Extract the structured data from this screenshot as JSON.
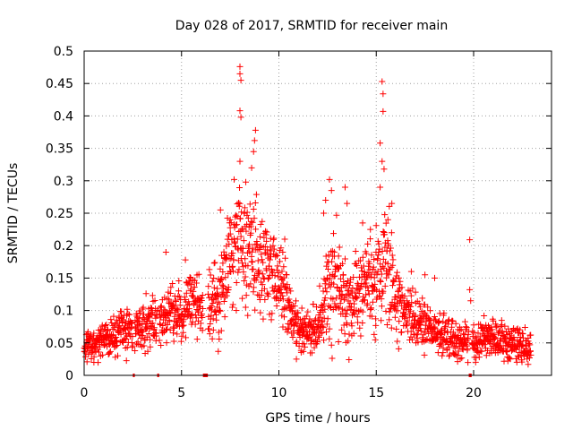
{
  "chart_data": {
    "type": "scatter",
    "title": "Day 028 of 2017, SRMTID for receiver main",
    "xlabel": "GPS time / hours",
    "ylabel": "SRMTID / TECUs",
    "xlim": [
      0,
      24
    ],
    "ylim": [
      0,
      0.5
    ],
    "grid": true,
    "marker": "+",
    "color": "#ff0000",
    "x_ticks": [
      0,
      5,
      10,
      15,
      20
    ],
    "x_tick_labels": [
      "0",
      "5",
      "10",
      "15",
      "20"
    ],
    "y_ticks": [
      0,
      0.05,
      0.1,
      0.15,
      0.2,
      0.25,
      0.3,
      0.35,
      0.4,
      0.45,
      0.5
    ],
    "y_tick_labels": [
      "0",
      "0.05",
      "0.1",
      "0.15",
      "0.2",
      "0.25",
      "0.3",
      "0.35",
      "0.4",
      "0.45",
      "0.5"
    ],
    "profile": {
      "hours": [
        0,
        1,
        2,
        3,
        4,
        4.5,
        5,
        5.5,
        6,
        6.5,
        7,
        7.5,
        8,
        8.5,
        9,
        9.5,
        10,
        10.5,
        11,
        11.5,
        12,
        12.5,
        13,
        13.5,
        14,
        14.5,
        15,
        15.5,
        16,
        16.5,
        17,
        17.5,
        18,
        19,
        20,
        20.5,
        21,
        22,
        23
      ],
      "median": [
        0.045,
        0.055,
        0.07,
        0.075,
        0.085,
        0.105,
        0.09,
        0.12,
        0.1,
        0.115,
        0.13,
        0.18,
        0.21,
        0.2,
        0.17,
        0.16,
        0.14,
        0.1,
        0.075,
        0.065,
        0.07,
        0.12,
        0.15,
        0.11,
        0.12,
        0.13,
        0.15,
        0.17,
        0.12,
        0.1,
        0.085,
        0.08,
        0.07,
        0.055,
        0.05,
        0.06,
        0.055,
        0.05,
        0.045
      ],
      "spread": [
        0.015,
        0.02,
        0.025,
        0.025,
        0.025,
        0.035,
        0.025,
        0.03,
        0.03,
        0.04,
        0.05,
        0.06,
        0.07,
        0.07,
        0.06,
        0.05,
        0.045,
        0.035,
        0.025,
        0.025,
        0.03,
        0.06,
        0.06,
        0.05,
        0.05,
        0.05,
        0.06,
        0.06,
        0.05,
        0.035,
        0.03,
        0.025,
        0.02,
        0.02,
        0.02,
        0.02,
        0.02,
        0.02,
        0.015
      ]
    },
    "points": [
      {
        "x": 8.0,
        "y": 0.476
      },
      {
        "x": 8.0,
        "y": 0.465
      },
      {
        "x": 8.05,
        "y": 0.455
      },
      {
        "x": 8.0,
        "y": 0.408
      },
      {
        "x": 8.05,
        "y": 0.398
      },
      {
        "x": 8.8,
        "y": 0.378
      },
      {
        "x": 8.75,
        "y": 0.362
      },
      {
        "x": 8.7,
        "y": 0.345
      },
      {
        "x": 8.0,
        "y": 0.33
      },
      {
        "x": 8.6,
        "y": 0.32
      },
      {
        "x": 7.7,
        "y": 0.302
      },
      {
        "x": 8.3,
        "y": 0.298
      },
      {
        "x": 15.3,
        "y": 0.453
      },
      {
        "x": 15.35,
        "y": 0.434
      },
      {
        "x": 15.35,
        "y": 0.407
      },
      {
        "x": 15.2,
        "y": 0.358
      },
      {
        "x": 15.3,
        "y": 0.33
      },
      {
        "x": 15.4,
        "y": 0.318
      },
      {
        "x": 15.2,
        "y": 0.29
      },
      {
        "x": 15.8,
        "y": 0.265
      },
      {
        "x": 15.6,
        "y": 0.24
      },
      {
        "x": 12.6,
        "y": 0.302
      },
      {
        "x": 12.7,
        "y": 0.285
      },
      {
        "x": 12.4,
        "y": 0.27
      },
      {
        "x": 13.4,
        "y": 0.29
      },
      {
        "x": 13.5,
        "y": 0.265
      },
      {
        "x": 12.3,
        "y": 0.25
      },
      {
        "x": 19.8,
        "y": 0.209
      },
      {
        "x": 19.8,
        "y": 0.132
      },
      {
        "x": 19.85,
        "y": 0.115
      },
      {
        "x": 10.3,
        "y": 0.21
      },
      {
        "x": 10.2,
        "y": 0.19
      },
      {
        "x": 4.2,
        "y": 0.19
      },
      {
        "x": 5.2,
        "y": 0.178
      },
      {
        "x": 7.0,
        "y": 0.255
      },
      {
        "x": 7.5,
        "y": 0.24
      },
      {
        "x": 14.3,
        "y": 0.235
      },
      {
        "x": 14.7,
        "y": 0.225
      },
      {
        "x": 16.8,
        "y": 0.16
      },
      {
        "x": 17.5,
        "y": 0.155
      },
      {
        "x": 18.0,
        "y": 0.15
      },
      {
        "x": 22.8,
        "y": 0.017
      },
      {
        "x": 10.9,
        "y": 0.025
      },
      {
        "x": 0.5,
        "y": 0.02
      },
      {
        "x": 1.6,
        "y": 0.028
      }
    ],
    "data_gap_markers": [
      {
        "start": 2.5,
        "end": 2.6
      },
      {
        "start": 3.75,
        "end": 3.85
      },
      {
        "start": 6.1,
        "end": 6.35
      },
      {
        "start": 19.75,
        "end": 19.9
      }
    ]
  }
}
